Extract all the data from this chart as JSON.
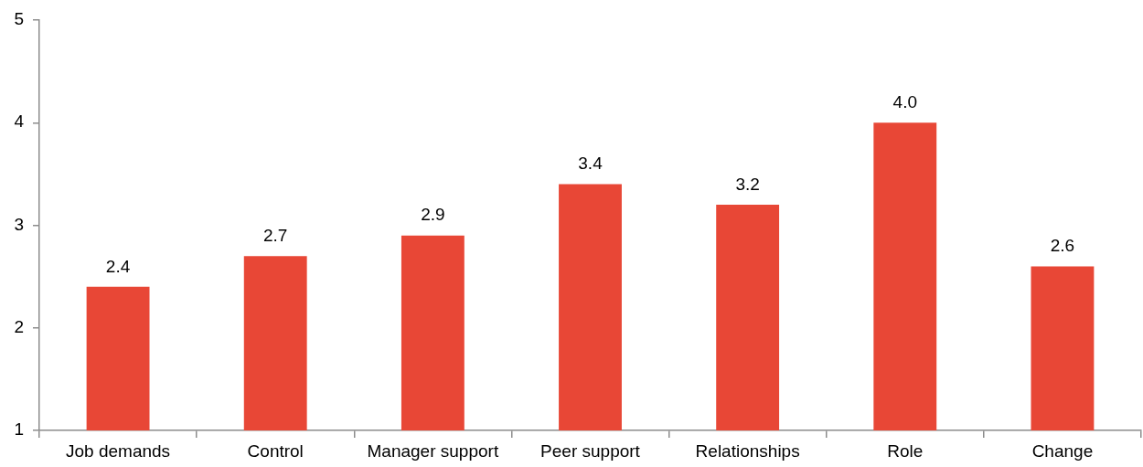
{
  "chart_data": {
    "type": "bar",
    "categories": [
      "Job demands",
      "Control",
      "Manager support",
      "Peer support",
      "Relationships",
      "Role",
      "Change"
    ],
    "values": [
      2.4,
      2.7,
      2.9,
      3.4,
      3.2,
      4.0,
      2.6
    ],
    "value_labels": [
      "2.4",
      "2.7",
      "2.9",
      "3.4",
      "3.2",
      "4.0",
      "2.6"
    ],
    "color": "#e84736",
    "ylim": [
      1,
      5
    ],
    "yticks": [
      1,
      2,
      3,
      4,
      5
    ],
    "grid": false,
    "legend": false
  }
}
